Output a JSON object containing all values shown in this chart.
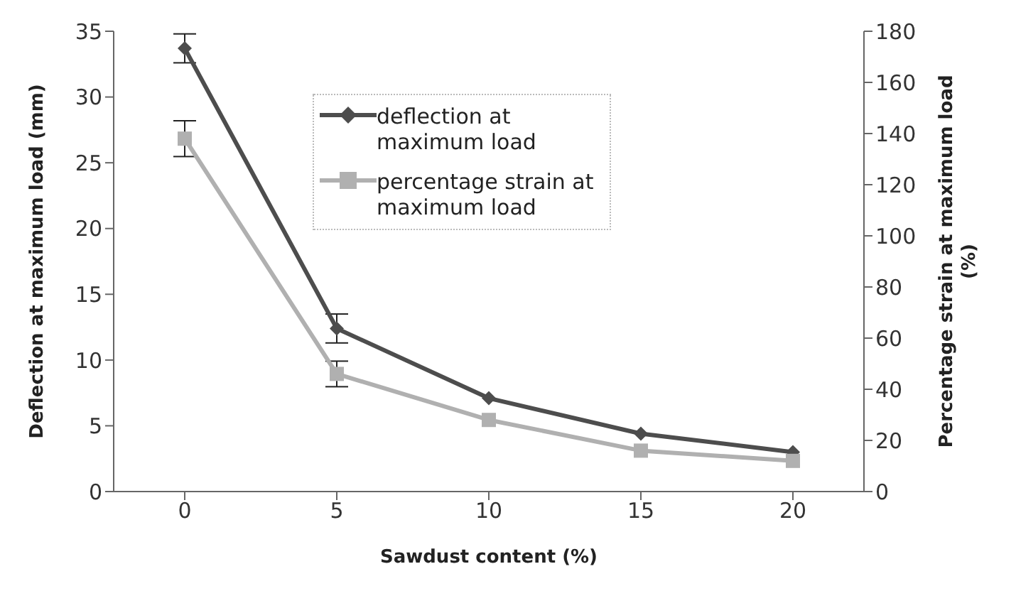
{
  "chart_data": {
    "type": "line",
    "categories": [
      "0",
      "5",
      "10",
      "15",
      "20"
    ],
    "xlabel": "Sawdust content (%)",
    "ylabel": "Deflection at maximum load (mm)",
    "y2label": "Percentage strain at maximum load (%)",
    "ylim": [
      0,
      35
    ],
    "yticks": [
      0,
      5,
      10,
      15,
      20,
      25,
      30,
      35
    ],
    "y2lim": [
      0,
      180
    ],
    "y2ticks": [
      0,
      20,
      40,
      60,
      80,
      100,
      120,
      140,
      160,
      180
    ],
    "grid": false,
    "legend": "top",
    "series": [
      {
        "name": "deflection at maximum load",
        "color": "#4d4d4d",
        "marker": "diamond",
        "values": [
          33.7,
          12.4,
          7.1,
          4.4,
          3.0
        ],
        "errors": [
          1.1,
          1.1,
          null,
          null,
          null
        ]
      },
      {
        "name": "percentage strain at maximum load",
        "color": "#b0b0b0",
        "marker": "square",
        "axis": "y2",
        "values": [
          138,
          46,
          28,
          16,
          12
        ],
        "errors": [
          7,
          5,
          null,
          null,
          null
        ]
      }
    ]
  }
}
